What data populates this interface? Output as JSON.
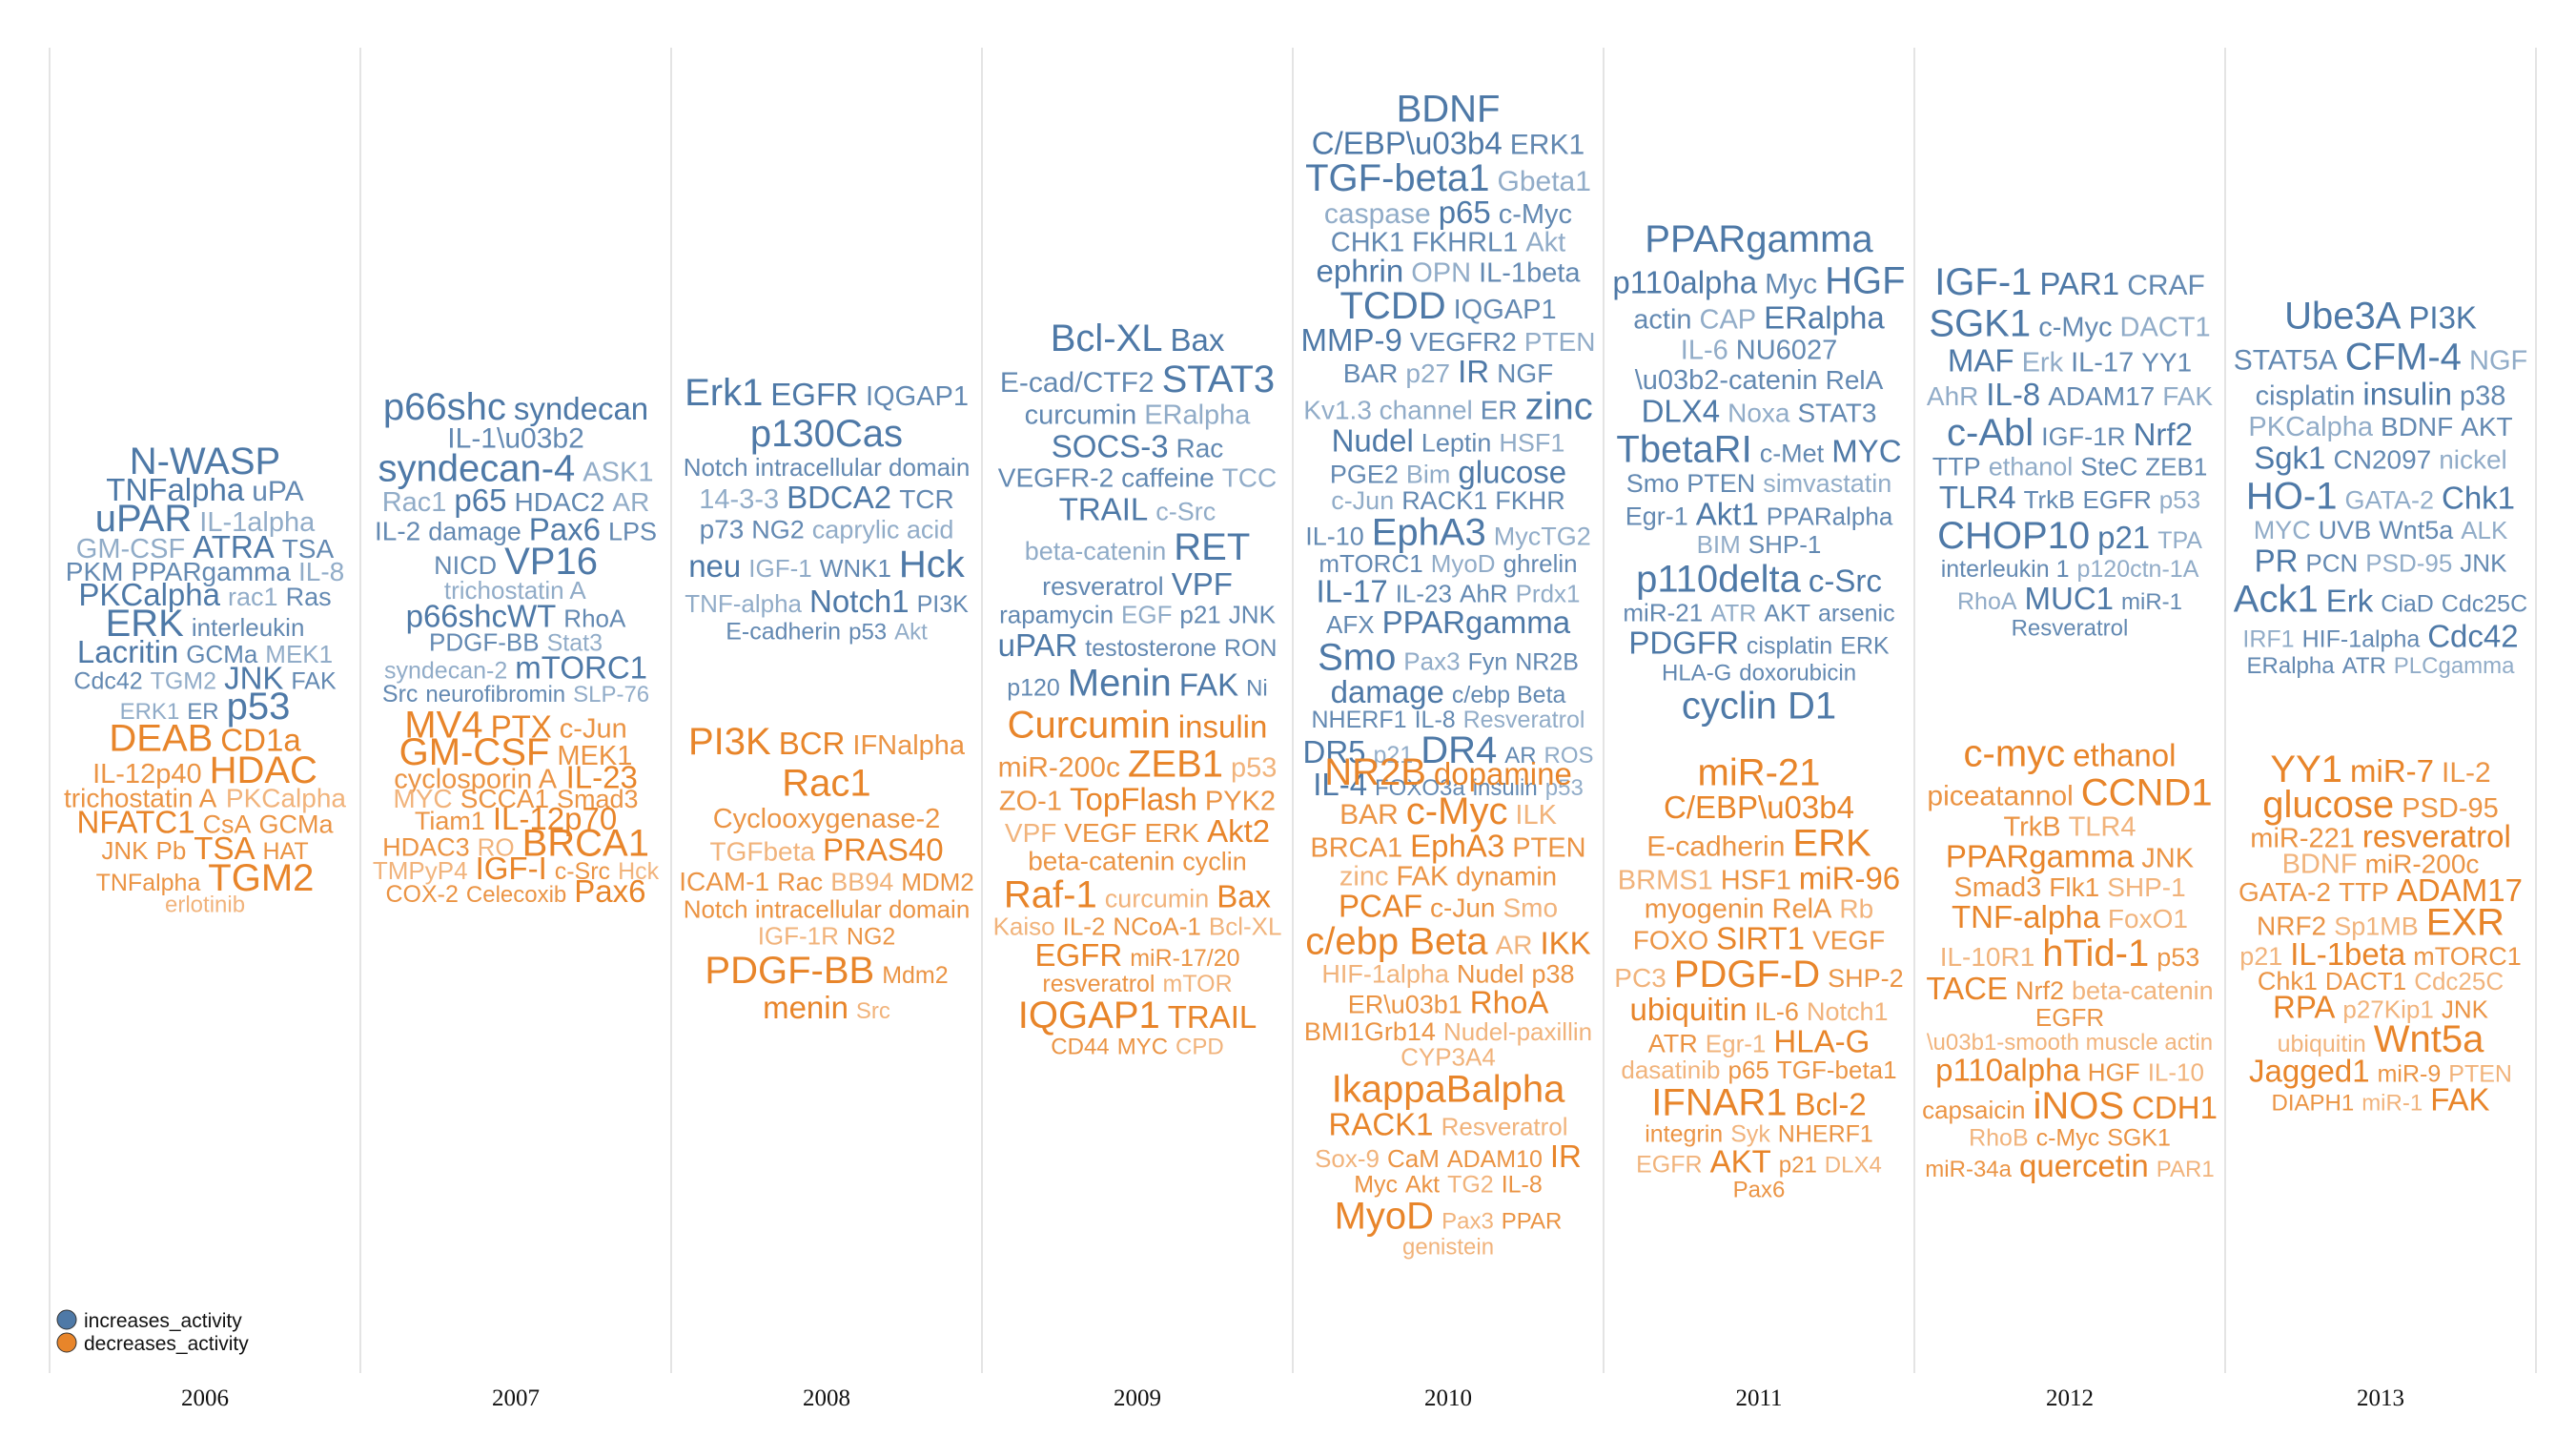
{
  "chart_data": {
    "type": "other",
    "colors": {
      "increases": "#4e79a7",
      "decreases": "#e8852a"
    },
    "legend": {
      "placement": "bottom-left",
      "items": [
        {
          "label": "increases_activity",
          "color": "#4e79a7"
        },
        {
          "label": "decreases_activity",
          "color": "#e8852a"
        }
      ]
    },
    "years": [
      "2006",
      "2007",
      "2008",
      "2009",
      "2010",
      "2011",
      "2012",
      "2013"
    ],
    "words": {
      "increases": {
        "2006": [
          "N-WASP",
          "TNFalpha",
          "uPA",
          "uPAR",
          "IL-1alpha",
          "GM-CSF",
          "ATRA",
          "TSA",
          "PKM",
          "PPARgamma",
          "IL-8",
          "PKCalpha",
          "rac1",
          "Ras",
          "ERK",
          "interleukin",
          "Lacritin",
          "GCMa",
          "MEK1",
          "Cdc42",
          "TGM2",
          "JNK",
          "FAK",
          "ERK1",
          "ER",
          "p53"
        ],
        "2007": [
          "p66shc",
          "syndecan",
          "IL-1\\u03b2",
          "syndecan-4",
          "ASK1",
          "Rac1",
          "p65",
          "HDAC2",
          "AR",
          "IL-2",
          "damage",
          "Pax6",
          "LPS",
          "NICD",
          "VP16",
          "trichostatin A",
          "p66shcWT",
          "RhoA",
          "PDGF-BB",
          "Stat3",
          "syndecan-2",
          "mTORC1",
          "Src",
          "neurofibromin",
          "SLP-76"
        ],
        "2008": [
          "Erk1",
          "EGFR",
          "IQGAP1",
          "p130Cas",
          "Notch intracellular domain",
          "14-3-3",
          "BDCA2",
          "TCR",
          "p73",
          "NG2",
          "caprylic acid",
          "neu",
          "IGF-1",
          "WNK1",
          "Hck",
          "TNF-alpha",
          "Notch1",
          "PI3K",
          "E-cadherin",
          "p53",
          "Akt"
        ],
        "2009": [
          "Bcl-XL",
          "Bax",
          "E-cad/CTF2",
          "STAT3",
          "curcumin",
          "ERalpha",
          "SOCS-3",
          "Rac",
          "VEGFR-2",
          "caffeine",
          "TCC",
          "TRAIL",
          "c-Src",
          "beta-catenin",
          "RET",
          "resveratrol",
          "VPF",
          "rapamycin",
          "EGF",
          "p21",
          "JNK",
          "uPAR",
          "testosterone",
          "RON",
          "p120",
          "Menin",
          "FAK",
          "Ni"
        ],
        "2010": [
          "BDNF",
          "C/EBP\\u03b4",
          "ERK1",
          "TGF-beta1",
          "Gbeta1",
          "caspase",
          "p65",
          "c-Myc",
          "CHK1",
          "FKHRL1",
          "Akt",
          "ephrin",
          "OPN",
          "IL-1beta",
          "TCDD",
          "IQGAP1",
          "MMP-9",
          "VEGFR2",
          "PTEN",
          "BAR",
          "p27",
          "IR",
          "NGF",
          "Kv1.3 channel",
          "ER",
          "zinc",
          "Nudel",
          "Leptin",
          "HSF1",
          "PGE2",
          "Bim",
          "glucose",
          "c-Jun",
          "RACK1",
          "FKHR",
          "IL-10",
          "EphA3",
          "MycTG2",
          "mTORC1",
          "MyoD",
          "ghrelin",
          "IL-17",
          "IL-23",
          "AhR",
          "Prdx1",
          "AFX",
          "PPARgamma",
          "Smo",
          "Pax3",
          "Fyn",
          "NR2B",
          "damage",
          "c/ebp Beta",
          "NHERF1",
          "IL-8",
          "Resveratrol",
          "DR5",
          "p21",
          "DR4",
          "AR",
          "ROS",
          "IL-4",
          "FOXO3a",
          "insulin",
          "p53"
        ],
        "2011": [
          "PPARgamma",
          "p110alpha",
          "Myc",
          "HGF",
          "actin",
          "CAP",
          "ERalpha",
          "IL-6",
          "NU6027",
          "\\u03b2-catenin",
          "RelA",
          "DLX4",
          "Noxa",
          "STAT3",
          "TbetaRI",
          "c-Met",
          "MYC",
          "Smo",
          "PTEN",
          "simvastatin",
          "Egr-1",
          "Akt1",
          "PPARalpha",
          "BIM",
          "SHP-1",
          "p110delta",
          "c-Src",
          "miR-21",
          "ATR",
          "AKT",
          "arsenic",
          "PDGFR",
          "cisplatin",
          "ERK",
          "HLA-G",
          "doxorubicin",
          "cyclin D1"
        ],
        "2012": [
          "IGF-1",
          "PAR1",
          "CRAF",
          "SGK1",
          "c-Myc",
          "DACT1",
          "MAF",
          "Erk",
          "IL-17",
          "YY1",
          "AhR",
          "IL-8",
          "ADAM17",
          "FAK",
          "c-Abl",
          "IGF-1R",
          "Nrf2",
          "TTP",
          "ethanol",
          "SteC",
          "ZEB1",
          "TLR4",
          "TrkB",
          "EGFR",
          "p53",
          "CHOP10",
          "p21",
          "TPA",
          "interleukin 1",
          "p120ctn-1A",
          "RhoA",
          "MUC1",
          "miR-1",
          "Resveratrol"
        ],
        "2013": [
          "Ube3A",
          "PI3K",
          "STAT5A",
          "CFM-4",
          "NGF",
          "cisplatin",
          "insulin",
          "p38",
          "PKCalpha",
          "BDNF",
          "AKT",
          "Sgk1",
          "CN2097",
          "nickel",
          "HO-1",
          "GATA-2",
          "Chk1",
          "MYC",
          "UVB",
          "Wnt5a",
          "ALK",
          "PR",
          "PCN",
          "PSD-95",
          "JNK",
          "Ack1",
          "Erk",
          "CiaD",
          "Cdc25C",
          "IRF1",
          "HIF-1alpha",
          "Cdc42",
          "ERalpha",
          "ATR",
          "PLCgamma"
        ]
      },
      "decreases": {
        "2006": [
          "DEAB",
          "CD1a",
          "IL-12p40",
          "HDAC",
          "trichostatin A",
          "PKCalpha",
          "NFATC1",
          "CsA",
          "GCMa",
          "JNK",
          "Pb",
          "TSA",
          "HAT",
          "TNFalpha",
          "TGM2",
          "erlotinib"
        ],
        "2007": [
          "MV4",
          "PTX",
          "c-Jun",
          "GM-CSF",
          "MEK1",
          "cyclosporin A",
          "IL-23",
          "MYC",
          "SCCA1",
          "Smad3",
          "Tiam1",
          "IL-12p70",
          "HDAC3",
          "RO",
          "BRCA1",
          "TMPyP4",
          "IGF-I",
          "c-Src",
          "Hck",
          "COX-2",
          "Celecoxib",
          "Pax6"
        ],
        "2008": [
          "PI3K",
          "BCR",
          "IFNalpha",
          "Rac1",
          "Cyclooxygenase-2",
          "TGFbeta",
          "PRAS40",
          "ICAM-1",
          "Rac",
          "BB94",
          "MDM2",
          "Notch intracellular domain",
          "IGF-1R",
          "NG2",
          "PDGF-BB",
          "Mdm2",
          "menin",
          "Src"
        ],
        "2009": [
          "Curcumin",
          "insulin",
          "miR-200c",
          "ZEB1",
          "p53",
          "ZO-1",
          "TopFlash",
          "PYK2",
          "VPF",
          "VEGF",
          "ERK",
          "Akt2",
          "beta-catenin",
          "cyclin",
          "Raf-1",
          "curcumin",
          "Bax",
          "Kaiso",
          "IL-2",
          "NCoA-1",
          "Bcl-XL",
          "EGFR",
          "miR-17/20",
          "resveratrol",
          "mTOR",
          "IQGAP1",
          "TRAIL",
          "CD44",
          "MYC",
          "CPD"
        ],
        "2010": [
          "NR2B",
          "dopamine",
          "BAR",
          "c-Myc",
          "ILK",
          "BRCA1",
          "EphA3",
          "PTEN",
          "zinc",
          "FAK",
          "dynamin",
          "PCAF",
          "c-Jun",
          "Smo",
          "c/ebp Beta",
          "AR",
          "IKK",
          "HIF-1alpha",
          "Nudel",
          "p38",
          "ER\\u03b1",
          "RhoA",
          "BMI1Grb14",
          "Nudel-paxillin",
          "CYP3A4",
          "IkappaBalpha",
          "RACK1",
          "Resveratrol",
          "Sox-9",
          "CaM",
          "ADAM10",
          "IR",
          "Myc",
          "Akt",
          "TG2",
          "IL-8",
          "MyoD",
          "Pax3",
          "PPAR",
          "genistein"
        ],
        "2011": [
          "miR-21",
          "C/EBP\\u03b4",
          "E-cadherin",
          "ERK",
          "BRMS1",
          "HSF1",
          "miR-96",
          "myogenin",
          "RelA",
          "Rb",
          "FOXO",
          "SIRT1",
          "VEGF",
          "PC3",
          "PDGF-D",
          "SHP-2",
          "ubiquitin",
          "IL-6",
          "Notch1",
          "ATR",
          "Egr-1",
          "HLA-G",
          "dasatinib",
          "p65",
          "TGF-beta1",
          "IFNAR1",
          "Bcl-2",
          "integrin",
          "Syk",
          "NHERF1",
          "EGFR",
          "AKT",
          "p21",
          "DLX4",
          "Pax6"
        ],
        "2012": [
          "c-myc",
          "ethanol",
          "piceatannol",
          "CCND1",
          "TrkB",
          "TLR4",
          "PPARgamma",
          "JNK",
          "Smad3",
          "Flk1",
          "SHP-1",
          "TNF-alpha",
          "FoxO1",
          "IL-10R1",
          "hTid-1",
          "p53",
          "TACE",
          "Nrf2",
          "beta-catenin",
          "EGFR",
          "\\u03b1-smooth muscle actin",
          "p110alpha",
          "HGF",
          "IL-10",
          "capsaicin",
          "iNOS",
          "CDH1",
          "RhoB",
          "c-Myc",
          "SGK1",
          "miR-34a",
          "quercetin",
          "PAR1"
        ],
        "2013": [
          "YY1",
          "miR-7",
          "IL-2",
          "glucose",
          "PSD-95",
          "miR-221",
          "resveratrol",
          "BDNF",
          "miR-200c",
          "GATA-2",
          "TTP",
          "ADAM17",
          "NRF2",
          "Sp1MB",
          "EXR",
          "p21",
          "IL-1beta",
          "mTORC1",
          "Chk1",
          "DACT1",
          "Cdc25C",
          "RPA",
          "p27Kip1",
          "JNK",
          "ubiquitin",
          "Wnt5a",
          "Jagged1",
          "miR-9",
          "PTEN",
          "DIAPH1",
          "miR-1",
          "FAK"
        ]
      }
    }
  }
}
